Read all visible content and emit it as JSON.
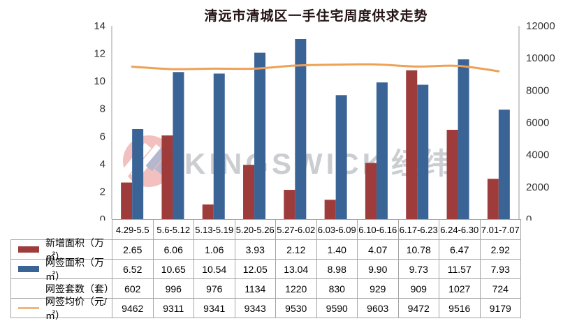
{
  "title": "清远市清城区一手住宅周度供求走势",
  "watermark": {
    "brand": "KINGSWICK",
    "brand_cn": "经纬"
  },
  "colors": {
    "bar_new_area": "#9E3B3B",
    "bar_signed_area": "#3A6396",
    "line_avg_price": "#EDA155",
    "line_swatch": "#EFB77E",
    "axis_line": "#9b9b9b",
    "table_border": "#a6a6a6",
    "watermark_gray": "#c3c5c9",
    "logo_pink": "#ec9d9d"
  },
  "chart_data": {
    "type": "combo-bar-line",
    "title": "清远市清城区一手住宅周度供求走势",
    "categories": [
      "4.29-5.5",
      "5.6-5.12",
      "5.13-5.19",
      "5.20-5.26",
      "5.27-6.02",
      "6.03-6.09",
      "6.10-6.16",
      "6.17-6.23",
      "6.24-6.30",
      "7.01-7.07"
    ],
    "series": [
      {
        "name": "新增面积（万㎡）",
        "type": "bar",
        "axis": "left",
        "color": "#9E3B3B",
        "decimals": 2,
        "values": [
          2.65,
          6.06,
          1.06,
          3.93,
          2.12,
          1.4,
          4.07,
          10.78,
          6.47,
          2.92
        ]
      },
      {
        "name": "网签面积（万㎡）",
        "type": "bar",
        "axis": "left",
        "color": "#3A6396",
        "decimals": 2,
        "values": [
          6.52,
          10.65,
          10.54,
          12.05,
          13.04,
          8.98,
          9.9,
          9.73,
          11.57,
          7.93
        ]
      },
      {
        "name": "网签套数（套）",
        "type": "table-only",
        "axis": "none",
        "color": "",
        "decimals": 0,
        "values": [
          602,
          996,
          976,
          1134,
          1220,
          830,
          929,
          909,
          1027,
          724
        ]
      },
      {
        "name": "网签均价（元/㎡）",
        "type": "line",
        "axis": "right",
        "color": "#EDA155",
        "decimals": 0,
        "values": [
          9462,
          9311,
          9341,
          9343,
          9530,
          9590,
          9603,
          9472,
          9516,
          9179
        ]
      }
    ],
    "left_axis": {
      "min": 0,
      "max": 14,
      "step": 2
    },
    "right_axis": {
      "min": 0,
      "max": 12000,
      "step": 2000
    },
    "grid": false,
    "legend_position": "table-rows-left"
  }
}
